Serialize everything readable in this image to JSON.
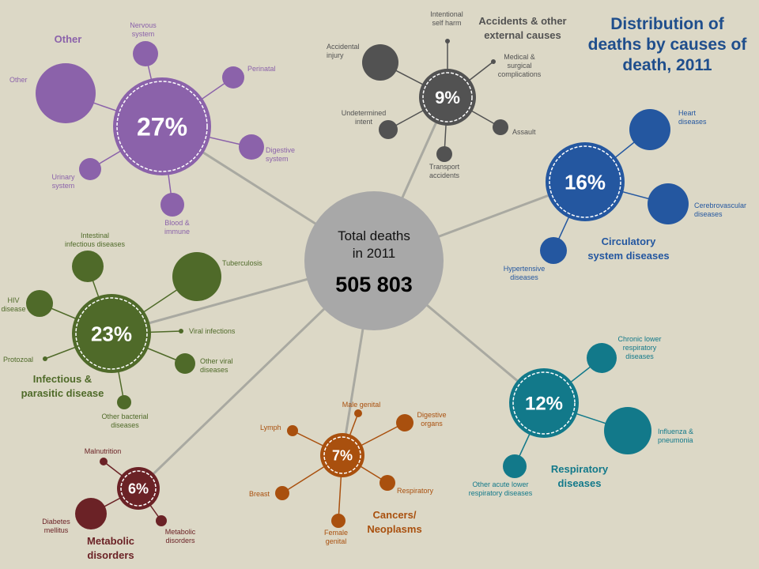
{
  "title_lines": [
    "Distribution of",
    "deaths by causes of",
    "death, 2011"
  ],
  "center": {
    "label_lines": [
      "Total deaths",
      "in 2011"
    ],
    "value": "505 803",
    "color": "#a8a8a8"
  },
  "groups": [
    {
      "id": "other",
      "percent": "27%",
      "color": "#8b62aa",
      "label_lines": [
        "Other"
      ],
      "subs": [
        {
          "label_lines": [
            "Nervous",
            "system"
          ]
        },
        {
          "label_lines": [
            "Perinatal"
          ]
        },
        {
          "label_lines": [
            "Other"
          ]
        },
        {
          "label_lines": [
            "Digestive",
            "system"
          ]
        },
        {
          "label_lines": [
            "Urinary",
            "system"
          ]
        },
        {
          "label_lines": [
            "Blood &",
            "immune"
          ]
        }
      ]
    },
    {
      "id": "accidents",
      "percent": "9%",
      "color": "#525252",
      "label_lines": [
        "Accidents & other",
        "external causes"
      ],
      "subs": [
        {
          "label_lines": [
            "Intentional",
            "self harm"
          ]
        },
        {
          "label_lines": [
            "Accidental",
            "injury"
          ]
        },
        {
          "label_lines": [
            "Medical &",
            "surgical",
            "complications"
          ]
        },
        {
          "label_lines": [
            "Undetermined",
            "intent"
          ]
        },
        {
          "label_lines": [
            "Assault"
          ]
        },
        {
          "label_lines": [
            "Transport",
            "accidents"
          ]
        }
      ]
    },
    {
      "id": "circulatory",
      "percent": "16%",
      "color": "#2457a0",
      "label_lines": [
        "Circulatory",
        "system diseases"
      ],
      "subs": [
        {
          "label_lines": [
            "Heart",
            "diseases"
          ]
        },
        {
          "label_lines": [
            "Cerebrovascular",
            "diseases"
          ]
        },
        {
          "label_lines": [
            "Hypertensive",
            "diseases"
          ]
        }
      ]
    },
    {
      "id": "infectious",
      "percent": "23%",
      "color": "#4f6a29",
      "label_lines": [
        "Infectious &",
        "parasitic disease"
      ],
      "subs": [
        {
          "label_lines": [
            "Intestinal",
            "infectious diseases"
          ]
        },
        {
          "label_lines": [
            "Tuberculosis"
          ]
        },
        {
          "label_lines": [
            "HIV",
            "disease"
          ]
        },
        {
          "label_lines": [
            "Viral infections"
          ]
        },
        {
          "label_lines": [
            "Protozoal"
          ]
        },
        {
          "label_lines": [
            "Other viral",
            "diseases"
          ]
        },
        {
          "label_lines": [
            "Other bacterial",
            "diseases"
          ]
        }
      ]
    },
    {
      "id": "respiratory",
      "percent": "12%",
      "color": "#12798a",
      "label_lines": [
        "Respiratory",
        "diseases"
      ],
      "subs": [
        {
          "label_lines": [
            "Chronic lower",
            "respiratory",
            "diseases"
          ]
        },
        {
          "label_lines": [
            "Influenza &",
            "pneumonia"
          ]
        },
        {
          "label_lines": [
            "Other acute lower",
            "respiratory diseases"
          ]
        }
      ]
    },
    {
      "id": "cancers",
      "percent": "7%",
      "color": "#a9500e",
      "label_lines": [
        "Cancers/",
        "Neoplasms"
      ],
      "subs": [
        {
          "label_lines": [
            "Male genital"
          ]
        },
        {
          "label_lines": [
            "Lymph"
          ]
        },
        {
          "label_lines": [
            "Digestive",
            "organs"
          ]
        },
        {
          "label_lines": [
            "Breast"
          ]
        },
        {
          "label_lines": [
            "Respiratory"
          ]
        },
        {
          "label_lines": [
            "Female",
            "genital"
          ]
        }
      ]
    },
    {
      "id": "metabolic",
      "percent": "6%",
      "color": "#6b2226",
      "label_lines": [
        "Metabolic",
        "disorders"
      ],
      "subs": [
        {
          "label_lines": [
            "Malnutrition"
          ]
        },
        {
          "label_lines": [
            "Diabetes",
            "mellitus"
          ]
        },
        {
          "label_lines": [
            "Metabolic",
            "disorders"
          ]
        }
      ]
    }
  ]
}
